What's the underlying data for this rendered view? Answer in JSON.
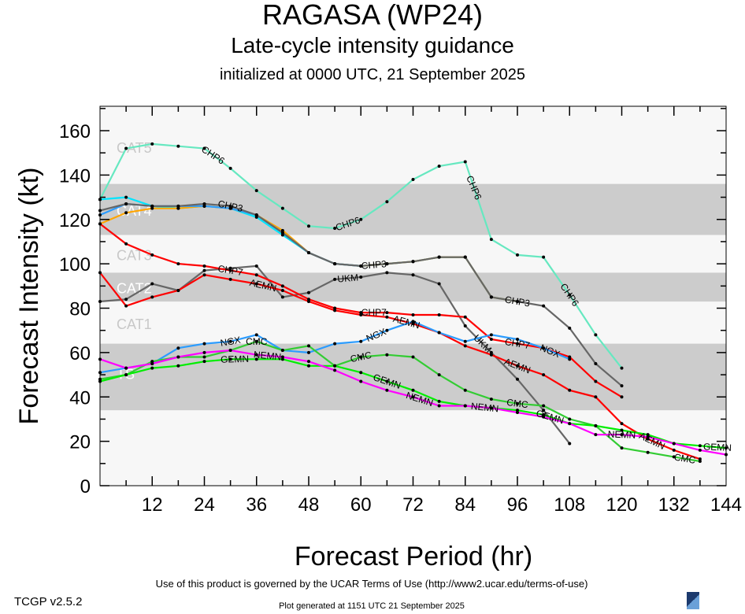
{
  "title": "RAGASA (WP24)",
  "subtitle": "Late-cycle intensity guidance",
  "subtitle2": "initialized at 0000 UTC, 21 September 2025",
  "footer": {
    "terms": "Use of this product is governed by the UCAR Terms of Use (http://www2.ucar.edu/terms-of-use)",
    "generated": "Plot generated at 1151 UTC   21 September 2025",
    "version": "TCGP v2.5.2",
    "logo": "NCAR"
  },
  "chart_data": {
    "type": "line",
    "xlabel": "Forecast Period (hr)",
    "ylabel": "Forecast Intensity (kt)",
    "xlim": [
      0,
      144
    ],
    "ylim": [
      0,
      171
    ],
    "xticks": [
      12,
      24,
      36,
      48,
      60,
      72,
      84,
      96,
      108,
      120,
      132,
      144
    ],
    "yticks": [
      0,
      20,
      40,
      60,
      80,
      100,
      120,
      140,
      160
    ],
    "categories": [
      {
        "label": "TS",
        "min": 34,
        "max": 64,
        "shaded": true
      },
      {
        "label": "CAT1",
        "min": 64,
        "max": 83,
        "shaded": false
      },
      {
        "label": "CAT2",
        "min": 83,
        "max": 96,
        "shaded": true
      },
      {
        "label": "CAT3",
        "min": 96,
        "max": 113,
        "shaded": false
      },
      {
        "label": "CAT4",
        "min": 113,
        "max": 136,
        "shaded": true
      },
      {
        "label": "CAT5",
        "min": 136,
        "max": 171,
        "shaded": false
      }
    ],
    "x": [
      0,
      6,
      12,
      18,
      24,
      30,
      36,
      42,
      48,
      54,
      60,
      66,
      72,
      78,
      84,
      90,
      96,
      102,
      108,
      114,
      120,
      126,
      132,
      138,
      144
    ],
    "series": [
      {
        "name": "CHP6",
        "color": "#66e8c0",
        "values": [
          129,
          152,
          154,
          153,
          152,
          143,
          133,
          125,
          117,
          116,
          120,
          128,
          138,
          144,
          146,
          111,
          104,
          103,
          86,
          68,
          53,
          null,
          null,
          null,
          null
        ],
        "labels": [
          {
            "text": "CHP6",
            "hr": 26
          },
          {
            "text": "CHP6",
            "hr": 57
          },
          {
            "text": "CHP6",
            "hr": 86
          },
          {
            "text": "CHP6",
            "hr": 108
          }
        ]
      },
      {
        "color": "#00e5ff",
        "values": [
          129,
          130,
          126,
          125,
          126,
          125,
          121,
          113,
          105,
          100,
          99,
          100,
          101,
          103,
          103,
          85,
          83,
          null,
          null,
          null,
          null,
          null,
          null,
          null,
          null
        ],
        "labels": []
      },
      {
        "color": "#ffa500",
        "values": [
          118,
          123,
          125,
          125,
          126,
          125,
          122,
          115,
          105,
          100,
          99,
          100,
          101,
          103,
          103,
          85,
          83,
          null,
          null,
          null,
          null,
          null,
          null,
          null,
          null
        ],
        "labels": []
      },
      {
        "color": "#2b9cff",
        "values": [
          122,
          127,
          126,
          126,
          126,
          125,
          122,
          114,
          105,
          100,
          99,
          null,
          null,
          null,
          null,
          null,
          null,
          null,
          null,
          null,
          null,
          null,
          null,
          null,
          null
        ],
        "labels": []
      },
      {
        "name": "CHP3",
        "color": "#666666",
        "values": [
          124,
          127,
          126,
          126,
          127,
          126,
          122,
          114,
          105,
          100,
          99,
          100,
          101,
          103,
          103,
          85,
          83,
          81,
          71,
          55,
          45,
          null,
          null,
          null,
          null
        ],
        "labels": [
          {
            "text": "CHP3",
            "hr": 30
          },
          {
            "text": "CHP3",
            "hr": 63
          },
          {
            "text": "CHP3",
            "hr": 96
          }
        ]
      },
      {
        "name": "UKM",
        "color": "#666666",
        "values": [
          83,
          84,
          91,
          88,
          97,
          98,
          99,
          85,
          87,
          93,
          94,
          96,
          95,
          91,
          72,
          60,
          48,
          34,
          19,
          null,
          null,
          null,
          null,
          null,
          null
        ],
        "labels": [
          {
            "text": "UKM",
            "hr": 60
          },
          {
            "text": "UKM",
            "hr": 88
          }
        ]
      },
      {
        "name": "CHP7",
        "color": "#ff0000",
        "values": [
          118,
          109,
          104,
          100,
          99,
          97,
          95,
          90,
          84,
          80,
          78,
          78,
          77,
          77,
          76,
          66,
          64,
          62,
          58,
          47,
          40,
          null,
          null,
          null,
          null
        ],
        "labels": [
          {
            "text": "CHP7",
            "hr": 30
          },
          {
            "text": "CHP7",
            "hr": 63
          },
          {
            "text": "CHP7",
            "hr": 96
          }
        ]
      },
      {
        "name": "AEMN",
        "color": "#ff0000",
        "values": [
          96,
          81,
          85,
          88,
          95,
          93,
          91,
          88,
          83,
          79,
          77,
          76,
          73,
          69,
          63,
          59,
          54,
          50,
          43,
          40,
          28,
          21,
          16,
          12,
          null
        ],
        "labels": [
          {
            "text": "AEMN",
            "hr": 30
          },
          {
            "text": "AEMN",
            "hr": 63
          },
          {
            "text": "AEMN",
            "hr": 96
          },
          {
            "text": "AEMN",
            "hr": 127
          }
        ]
      },
      {
        "name": "NGX",
        "color": "#2b9cff",
        "values": [
          51,
          53,
          55,
          62,
          64,
          65,
          68,
          61,
          60,
          64,
          65,
          70,
          74,
          69,
          65,
          68,
          66,
          62,
          57,
          null,
          null,
          null,
          null,
          null,
          null
        ],
        "labels": [
          {
            "text": "NGX",
            "hr": 30
          },
          {
            "text": "NGX",
            "hr": 65
          },
          {
            "text": "NGX",
            "hr": 96
          }
        ]
      },
      {
        "name": "CMC",
        "color": "#33cc33",
        "values": [
          48,
          50,
          56,
          58,
          58,
          61,
          65,
          61,
          63,
          54,
          58,
          59,
          58,
          50,
          43,
          39,
          37,
          36,
          30,
          27,
          17,
          15,
          13,
          11,
          null
        ],
        "labels": [
          {
            "text": "CMC",
            "hr": 30
          },
          {
            "text": "CMC",
            "hr": 60
          },
          {
            "text": "CMC",
            "hr": 96
          },
          {
            "text": "CMC",
            "hr": 127
          }
        ]
      },
      {
        "name": "GEMN",
        "color": "#00ee00",
        "values": [
          47,
          50,
          53,
          54,
          56,
          57,
          57,
          57,
          54,
          54,
          51,
          47,
          43,
          38,
          36,
          35,
          34,
          32,
          28,
          27,
          25,
          23,
          19,
          18,
          17
        ],
        "labels": [
          {
            "text": "GEMN",
            "hr": 31
          },
          {
            "text": "GEMN",
            "hr": 66
          },
          {
            "text": "GEMN",
            "hr": 99
          },
          {
            "text": "GEMN",
            "hr": 142
          }
        ]
      },
      {
        "name": "NEMN",
        "color": "#ff00ff",
        "values": [
          57,
          53,
          55,
          58,
          60,
          61,
          59,
          58,
          56,
          52,
          47,
          43,
          40,
          36,
          36,
          35,
          33,
          31,
          28,
          23,
          23,
          22,
          19,
          16,
          14
        ],
        "labels": [
          {
            "text": "NEMN",
            "hr": 31
          },
          {
            "text": "NEMN",
            "hr": 66
          },
          {
            "text": "NEMN",
            "hr": 99
          },
          {
            "text": "NEMN",
            "hr": 138
          }
        ]
      }
    ],
    "grid": false,
    "legend": "none"
  }
}
